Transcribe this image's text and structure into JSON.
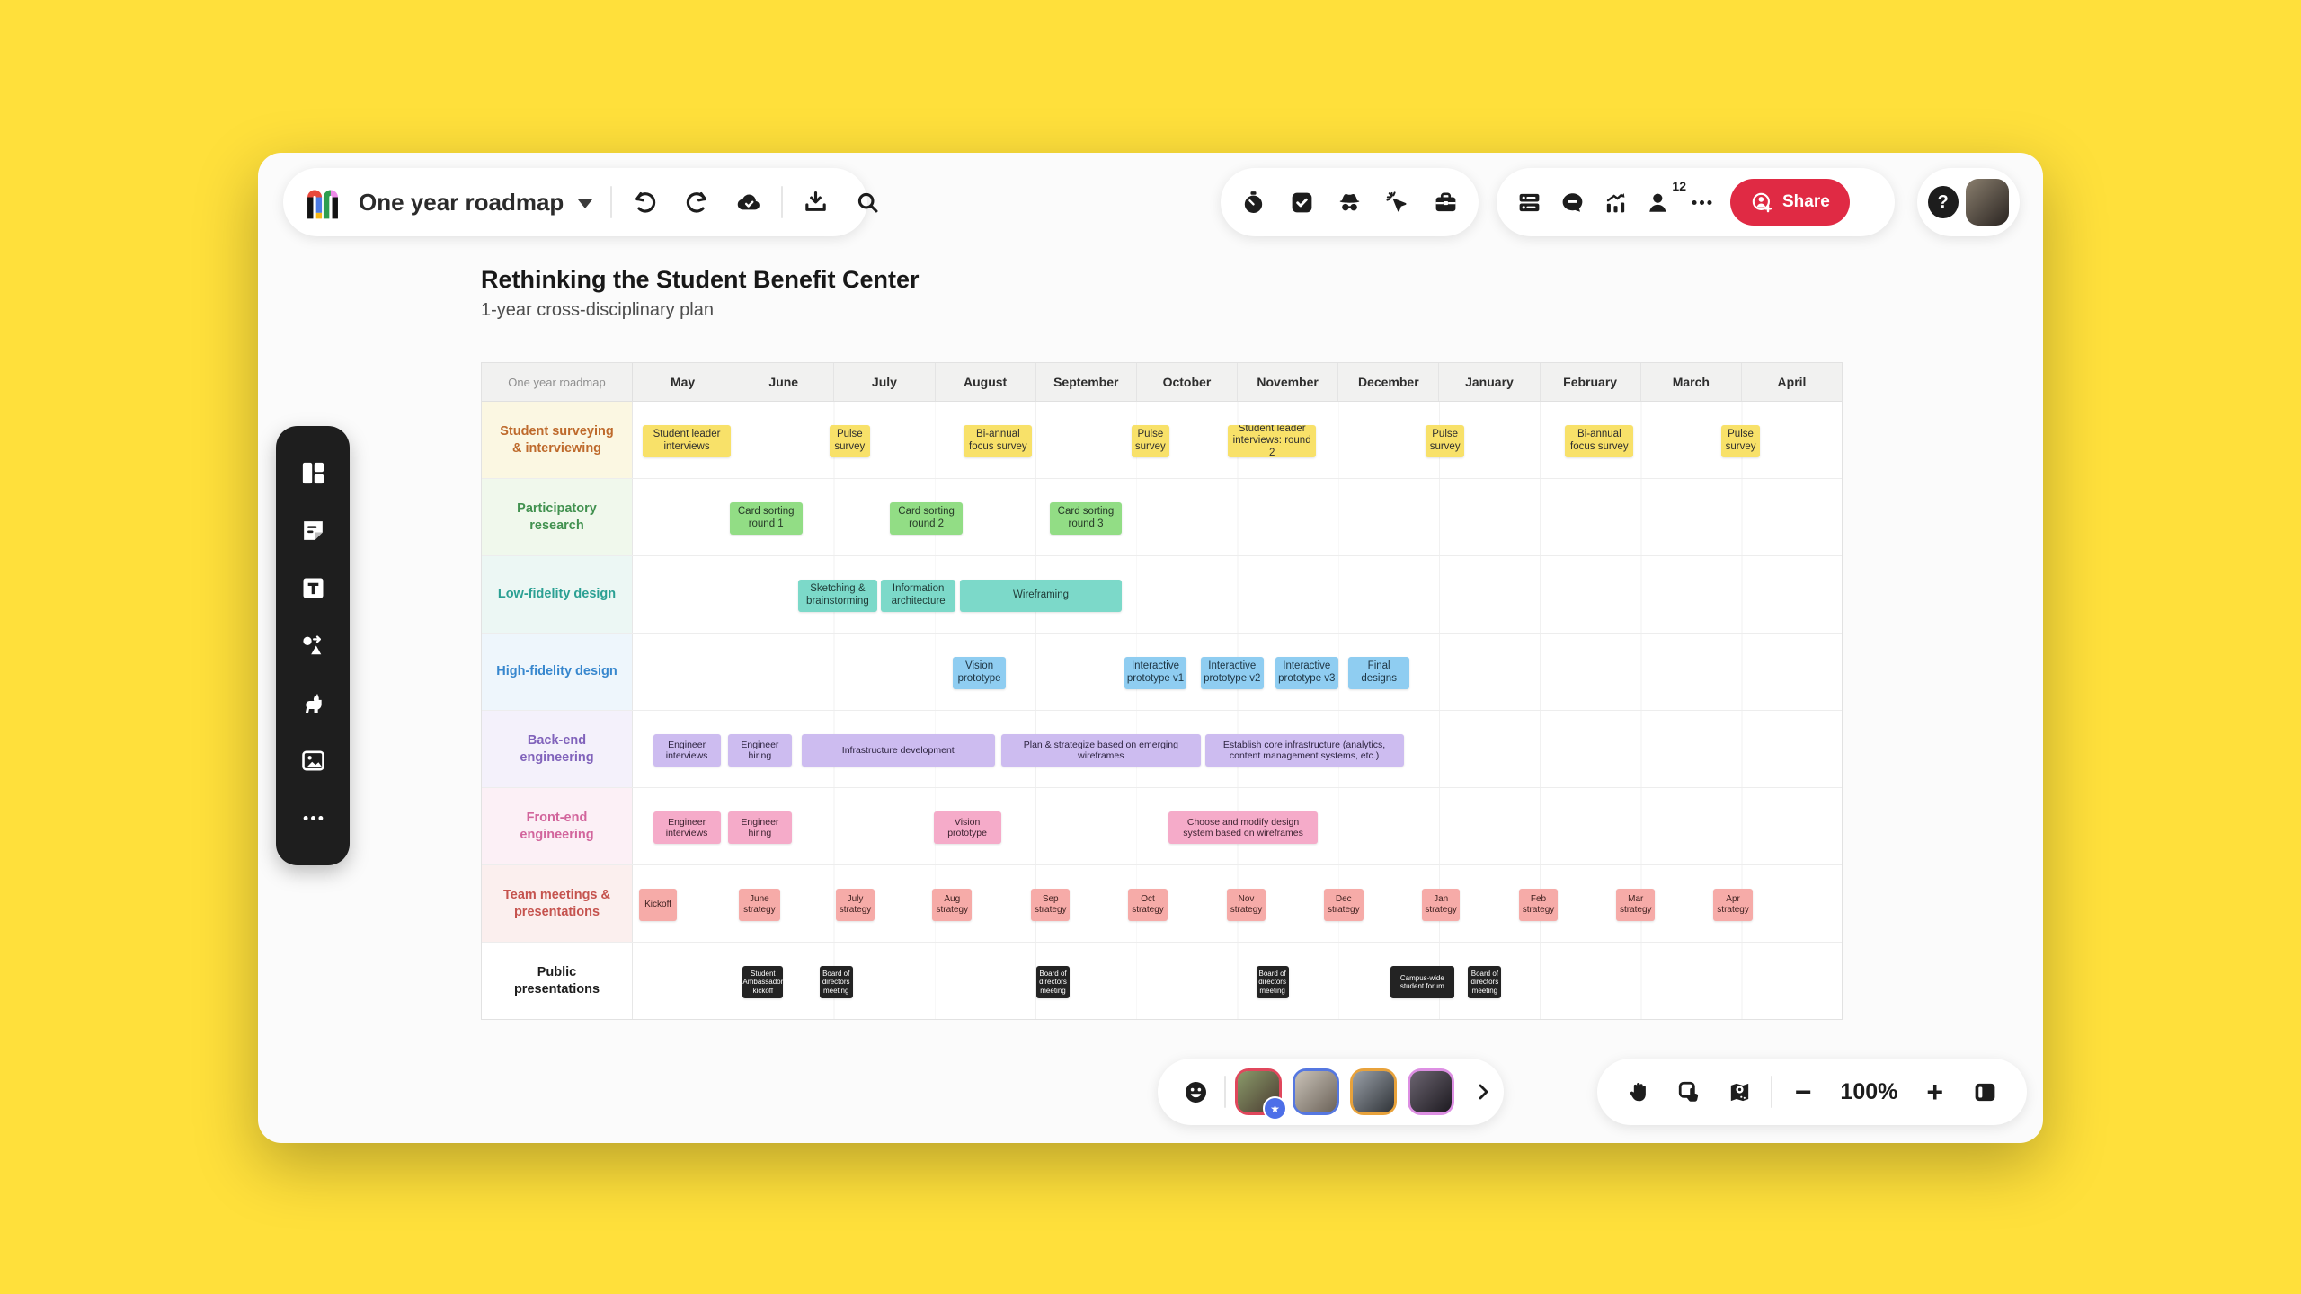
{
  "page": {
    "background": "#FFE03B",
    "accent_red": "#E02A44"
  },
  "top_bar": {
    "board_title": "One year roadmap",
    "left_icons": [
      "mural-logo",
      "title-dropdown-caret",
      "undo-icon",
      "redo-icon",
      "cloud-saved-icon",
      "export-icon",
      "search-icon"
    ],
    "facilitation_icons": [
      "timer-icon",
      "voting-icon",
      "private-mode-icon",
      "laser-pointer-icon",
      "toolkit-icon"
    ],
    "collab_icons": [
      "outline-icon",
      "comments-icon",
      "insights-icon",
      "collaborators-icon",
      "more-icon"
    ],
    "collaborators_count": "12",
    "share_label": "Share",
    "help_label": "?",
    "user_avatar": {
      "c1": "#8a7f6e",
      "c2": "#2a2421"
    }
  },
  "sidebar": {
    "icons": [
      "layouts-icon",
      "sticky-note-icon",
      "text-icon",
      "shapes-connectors-icon",
      "llama-icon",
      "image-icon",
      "more-icon"
    ]
  },
  "canvas": {
    "title": "Rethinking the Student Benefit Center",
    "subtitle": "1-year cross-disciplinary plan"
  },
  "roadmap": {
    "corner_label": "One year roadmap",
    "months": [
      "May",
      "June",
      "July",
      "August",
      "September",
      "October",
      "November",
      "December",
      "January",
      "February",
      "March",
      "April"
    ],
    "rows": [
      {
        "label": "Student surveying & interviewing",
        "theme": {
          "label_bg": "#FBF7E2",
          "label_color": "#BE6A2C",
          "tag_bg": "#F8E169",
          "tag_color": "#2f2f2f"
        },
        "tags": [
          {
            "text": "Student leader interviews",
            "start": 0.1,
            "span": 0.87
          },
          {
            "text": "Pulse survey",
            "start": 1.95,
            "span": 0.4
          },
          {
            "text": "Bi-annual focus survey",
            "start": 3.28,
            "span": 0.68
          },
          {
            "text": "Pulse survey",
            "start": 4.94,
            "span": 0.38
          },
          {
            "text": "Student leader interviews: round 2",
            "start": 5.9,
            "span": 0.87
          },
          {
            "text": "Pulse survey",
            "start": 7.86,
            "span": 0.38
          },
          {
            "text": "Bi-annual focus survey",
            "start": 9.24,
            "span": 0.68
          },
          {
            "text": "Pulse survey",
            "start": 10.79,
            "span": 0.38
          }
        ]
      },
      {
        "label": "Participatory research",
        "theme": {
          "label_bg": "#F0F8EC",
          "label_color": "#41914F",
          "tag_bg": "#92DD85",
          "tag_color": "#273a28"
        },
        "tags": [
          {
            "text": "Card sorting round 1",
            "start": 0.96,
            "span": 0.72
          },
          {
            "text": "Card sorting round 2",
            "start": 2.55,
            "span": 0.72
          },
          {
            "text": "Card sorting round 3",
            "start": 4.13,
            "span": 0.72
          }
        ]
      },
      {
        "label": "Low-fidelity design",
        "theme": {
          "label_bg": "#ECF7F4",
          "label_color": "#2BA093",
          "tag_bg": "#7CD9C9",
          "tag_color": "#1f3a36"
        },
        "tags": [
          {
            "text": "Sketching & brainstorming",
            "start": 1.64,
            "span": 0.78
          },
          {
            "text": "Information architecture",
            "start": 2.46,
            "span": 0.74
          },
          {
            "text": "Wireframing",
            "start": 3.24,
            "span": 1.61
          }
        ]
      },
      {
        "label": "High-fidelity design",
        "theme": {
          "label_bg": "#EEF6FC",
          "label_color": "#3787CE",
          "tag_bg": "#8FCDF1",
          "tag_color": "#1d3442"
        },
        "tags": [
          {
            "text": "Vision prototype",
            "start": 3.17,
            "span": 0.53
          },
          {
            "text": "Interactive prototype v1",
            "start": 4.87,
            "span": 0.62
          },
          {
            "text": "Interactive prototype v2",
            "start": 5.63,
            "span": 0.62
          },
          {
            "text": "Interactive prototype v3",
            "start": 6.37,
            "span": 0.62
          },
          {
            "text": "Final designs",
            "start": 7.09,
            "span": 0.61
          }
        ]
      },
      {
        "label": "Back-end engineering",
        "theme": {
          "label_bg": "#F4F1FB",
          "label_color": "#8163BB",
          "tag_bg": "#CDBCF0",
          "tag_color": "#2d2440",
          "tag_font": 10.5
        },
        "tags": [
          {
            "text": "Engineer interviews",
            "start": 0.2,
            "span": 0.67
          },
          {
            "text": "Engineer hiring",
            "start": 0.94,
            "span": 0.64
          },
          {
            "text": "Infrastructure development",
            "start": 1.67,
            "span": 1.92
          },
          {
            "text": "Plan & strategize based on emerging wireframes",
            "start": 3.65,
            "span": 1.98
          },
          {
            "text": "Establish core infrastructure (analytics, content management systems, etc.)",
            "start": 5.67,
            "span": 1.97
          }
        ]
      },
      {
        "label": "Front-end engineering",
        "theme": {
          "label_bg": "#FCF0F6",
          "label_color": "#D2659C",
          "tag_bg": "#F5ABC9",
          "tag_color": "#3d2230",
          "tag_font": 10.5
        },
        "tags": [
          {
            "text": "Engineer interviews",
            "start": 0.2,
            "span": 0.67
          },
          {
            "text": "Engineer hiring",
            "start": 0.94,
            "span": 0.64
          },
          {
            "text": "Vision prototype",
            "start": 2.98,
            "span": 0.67
          },
          {
            "text": "Choose and modify design system based on wireframes",
            "start": 5.31,
            "span": 1.48
          }
        ]
      },
      {
        "label": "Team meetings & presentations",
        "theme": {
          "label_bg": "#FBEFEE",
          "label_color": "#C5534E",
          "tag_bg": "#F6ABA8",
          "tag_color": "#3c1f1e",
          "tag_font": 10
        },
        "tags": [
          {
            "text": "Kickoff",
            "start": 0.06,
            "span": 0.38
          },
          {
            "text": "June strategy",
            "start": 1.05,
            "span": 0.41
          },
          {
            "text": "July strategy",
            "start": 2.01,
            "span": 0.39
          },
          {
            "text": "Aug strategy",
            "start": 2.97,
            "span": 0.39
          },
          {
            "text": "Sep strategy",
            "start": 3.95,
            "span": 0.38
          },
          {
            "text": "Oct strategy",
            "start": 4.91,
            "span": 0.39
          },
          {
            "text": "Nov strategy",
            "start": 5.89,
            "span": 0.38
          },
          {
            "text": "Dec strategy",
            "start": 6.85,
            "span": 0.39
          },
          {
            "text": "Jan strategy",
            "start": 7.82,
            "span": 0.38
          },
          {
            "text": "Feb strategy",
            "start": 8.78,
            "span": 0.39
          },
          {
            "text": "Mar strategy",
            "start": 9.75,
            "span": 0.38
          },
          {
            "text": "Apr strategy",
            "start": 10.71,
            "span": 0.39
          }
        ]
      },
      {
        "label": "Public presentations",
        "theme": {
          "label_bg": "#FFFFFF",
          "label_color": "#1c1c1c",
          "tag_bg": "#232323",
          "tag_color": "#FFFFFF",
          "tag_font": 8
        },
        "tags": [
          {
            "text": "Student Ambassador kickoff",
            "start": 1.09,
            "span": 0.4
          },
          {
            "text": "Board of directors meeting",
            "start": 1.85,
            "span": 0.33
          },
          {
            "text": "Board of directors meeting",
            "start": 4.0,
            "span": 0.33
          },
          {
            "text": "Board of directors meeting",
            "start": 6.18,
            "span": 0.32
          },
          {
            "text": "Campus-wide student forum",
            "start": 7.51,
            "span": 0.63
          },
          {
            "text": "Board of directors meeting",
            "start": 8.28,
            "span": 0.33
          }
        ]
      }
    ]
  },
  "bottom_bar": {
    "left_icons": [
      "reactions-icon",
      "chevron-right-icon"
    ],
    "right_icons": [
      "pan-hand-icon",
      "select-icon",
      "minimap-icon",
      "zoom-out-icon",
      "zoom-in-icon",
      "collapse-panel-icon"
    ],
    "zoom_level": "100%",
    "avatars": [
      {
        "ring": "#E0475C",
        "c1": "#8a9a6a",
        "c2": "#4a3b30",
        "star": true
      },
      {
        "ring": "#5577E0",
        "c1": "#c9c2b8",
        "c2": "#6b6258",
        "star": false
      },
      {
        "ring": "#E8A23B",
        "c1": "#9aa0a8",
        "c2": "#2f3338",
        "star": false
      },
      {
        "ring": "#DD8FE3",
        "c1": "#6b6470",
        "c2": "#1d1a20",
        "star": false
      }
    ]
  }
}
